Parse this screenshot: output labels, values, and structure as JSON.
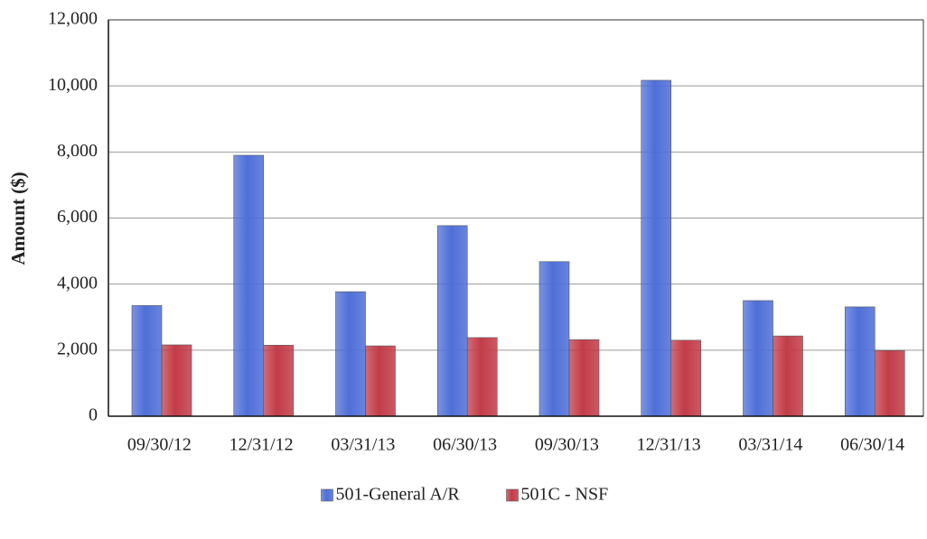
{
  "chart_data": {
    "type": "bar",
    "y_label": "Amount ($)",
    "categories": [
      "09/30/12",
      "12/31/12",
      "03/31/13",
      "06/30/13",
      "09/30/13",
      "12/31/13",
      "03/31/14",
      "06/30/14"
    ],
    "series": [
      {
        "name": "501-General A/R",
        "color": "#4f6fd8",
        "values": [
          3350,
          7900,
          3770,
          5770,
          4680,
          10170,
          3500,
          3310
        ]
      },
      {
        "name": "501C - NSF",
        "color": "#c23c48",
        "values": [
          2160,
          2150,
          2130,
          2380,
          2320,
          2300,
          2430,
          1990
        ]
      }
    ],
    "ylim": [
      0,
      12000
    ],
    "yticks": [
      0,
      {
        "value": 2000,
        "label": "2,000"
      },
      {
        "value": 4000,
        "label": "4,000"
      },
      {
        "value": 6000,
        "label": "6,000"
      },
      {
        "value": 8000,
        "label": "8,000"
      },
      {
        "value": 10000,
        "label": "10,000"
      },
      {
        "value": 12000,
        "label": "12,000"
      }
    ],
    "grid": true,
    "legend": "bottom"
  }
}
